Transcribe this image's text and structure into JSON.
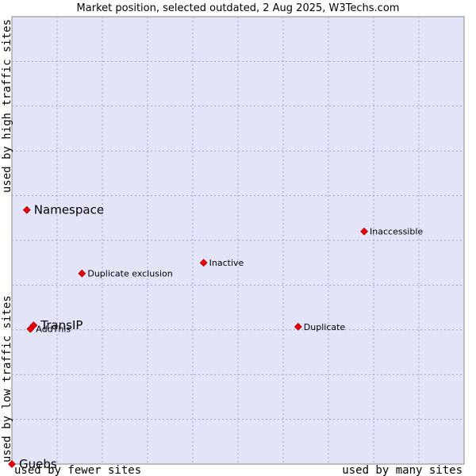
{
  "chart_data": {
    "type": "scatter",
    "title": "Market position, selected outdated, 2 Aug 2025, W3Techs.com",
    "xlabel_left": "used by fewer sites",
    "xlabel_right": "used by many sites",
    "ylabel_bottom": "used by low traffic sites",
    "ylabel_top": "used by high traffic sites",
    "xlim": [
      0,
      100
    ],
    "ylim": [
      0,
      100
    ],
    "grid": true,
    "background_color": "#e4e4f8",
    "marker_color": "#e8000a",
    "points": [
      {
        "label": "Namespace",
        "x": 3.3,
        "y": 56.8,
        "emphasis": true
      },
      {
        "label": "Inaccessible",
        "x": 77.9,
        "y": 52.0,
        "emphasis": false
      },
      {
        "label": "Inactive",
        "x": 42.4,
        "y": 45.0,
        "emphasis": false
      },
      {
        "label": "Duplicate exclusion",
        "x": 15.5,
        "y": 42.6,
        "emphasis": false
      },
      {
        "label": "TransIP",
        "x": 4.8,
        "y": 31.0,
        "emphasis": true
      },
      {
        "label": "Duplicate",
        "x": 63.3,
        "y": 30.7,
        "emphasis": false
      },
      {
        "label": "AddThis",
        "x": 4.1,
        "y": 30.2,
        "emphasis": false
      },
      {
        "label": "Guebs",
        "x": 0.0,
        "y": 0.0,
        "emphasis": true
      }
    ]
  }
}
